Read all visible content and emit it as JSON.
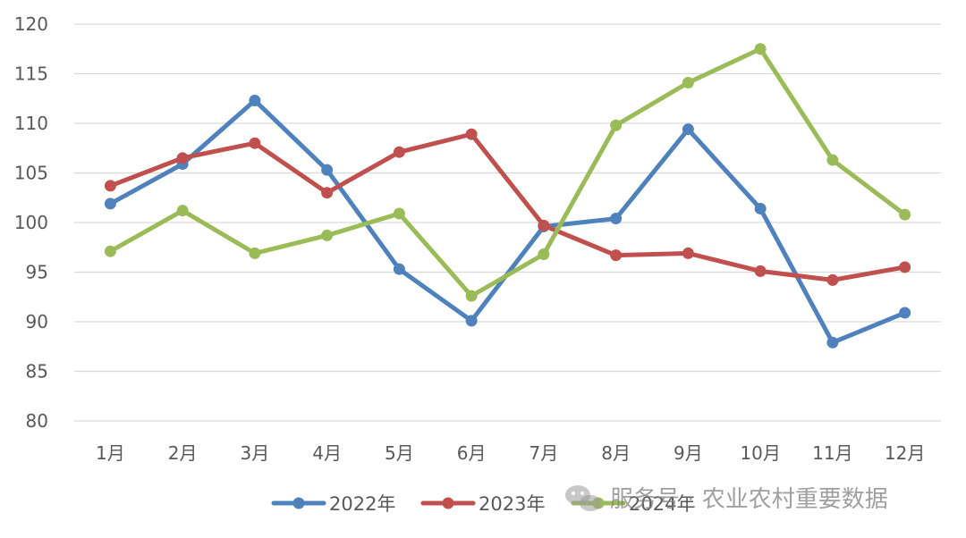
{
  "watermark": {
    "text": "服务号 · 农业农村重要数据",
    "icon": "wechat-icon"
  },
  "chart_data": {
    "type": "line",
    "categories": [
      "1月",
      "2月",
      "3月",
      "4月",
      "5月",
      "6月",
      "7月",
      "8月",
      "9月",
      "10月",
      "11月",
      "12月"
    ],
    "ylim": [
      80,
      120
    ],
    "yticks": [
      80,
      85,
      90,
      95,
      100,
      105,
      110,
      115,
      120
    ],
    "grid": true,
    "legend": "bottom",
    "series": [
      {
        "name": "2022年",
        "color": "#4F81BD",
        "values": [
          101.9,
          105.9,
          112.3,
          105.3,
          95.3,
          90.1,
          99.6,
          100.4,
          109.4,
          101.4,
          87.9,
          90.9
        ]
      },
      {
        "name": "2023年",
        "color": "#C0504D",
        "values": [
          103.7,
          106.5,
          108.0,
          103.0,
          107.1,
          108.9,
          99.7,
          96.7,
          96.9,
          95.1,
          94.2,
          95.5
        ]
      },
      {
        "name": "2024年",
        "color": "#9BBB59",
        "values": [
          97.1,
          101.2,
          96.9,
          98.7,
          100.9,
          92.6,
          96.8,
          109.8,
          114.1,
          117.5,
          106.3,
          100.8
        ]
      }
    ]
  }
}
